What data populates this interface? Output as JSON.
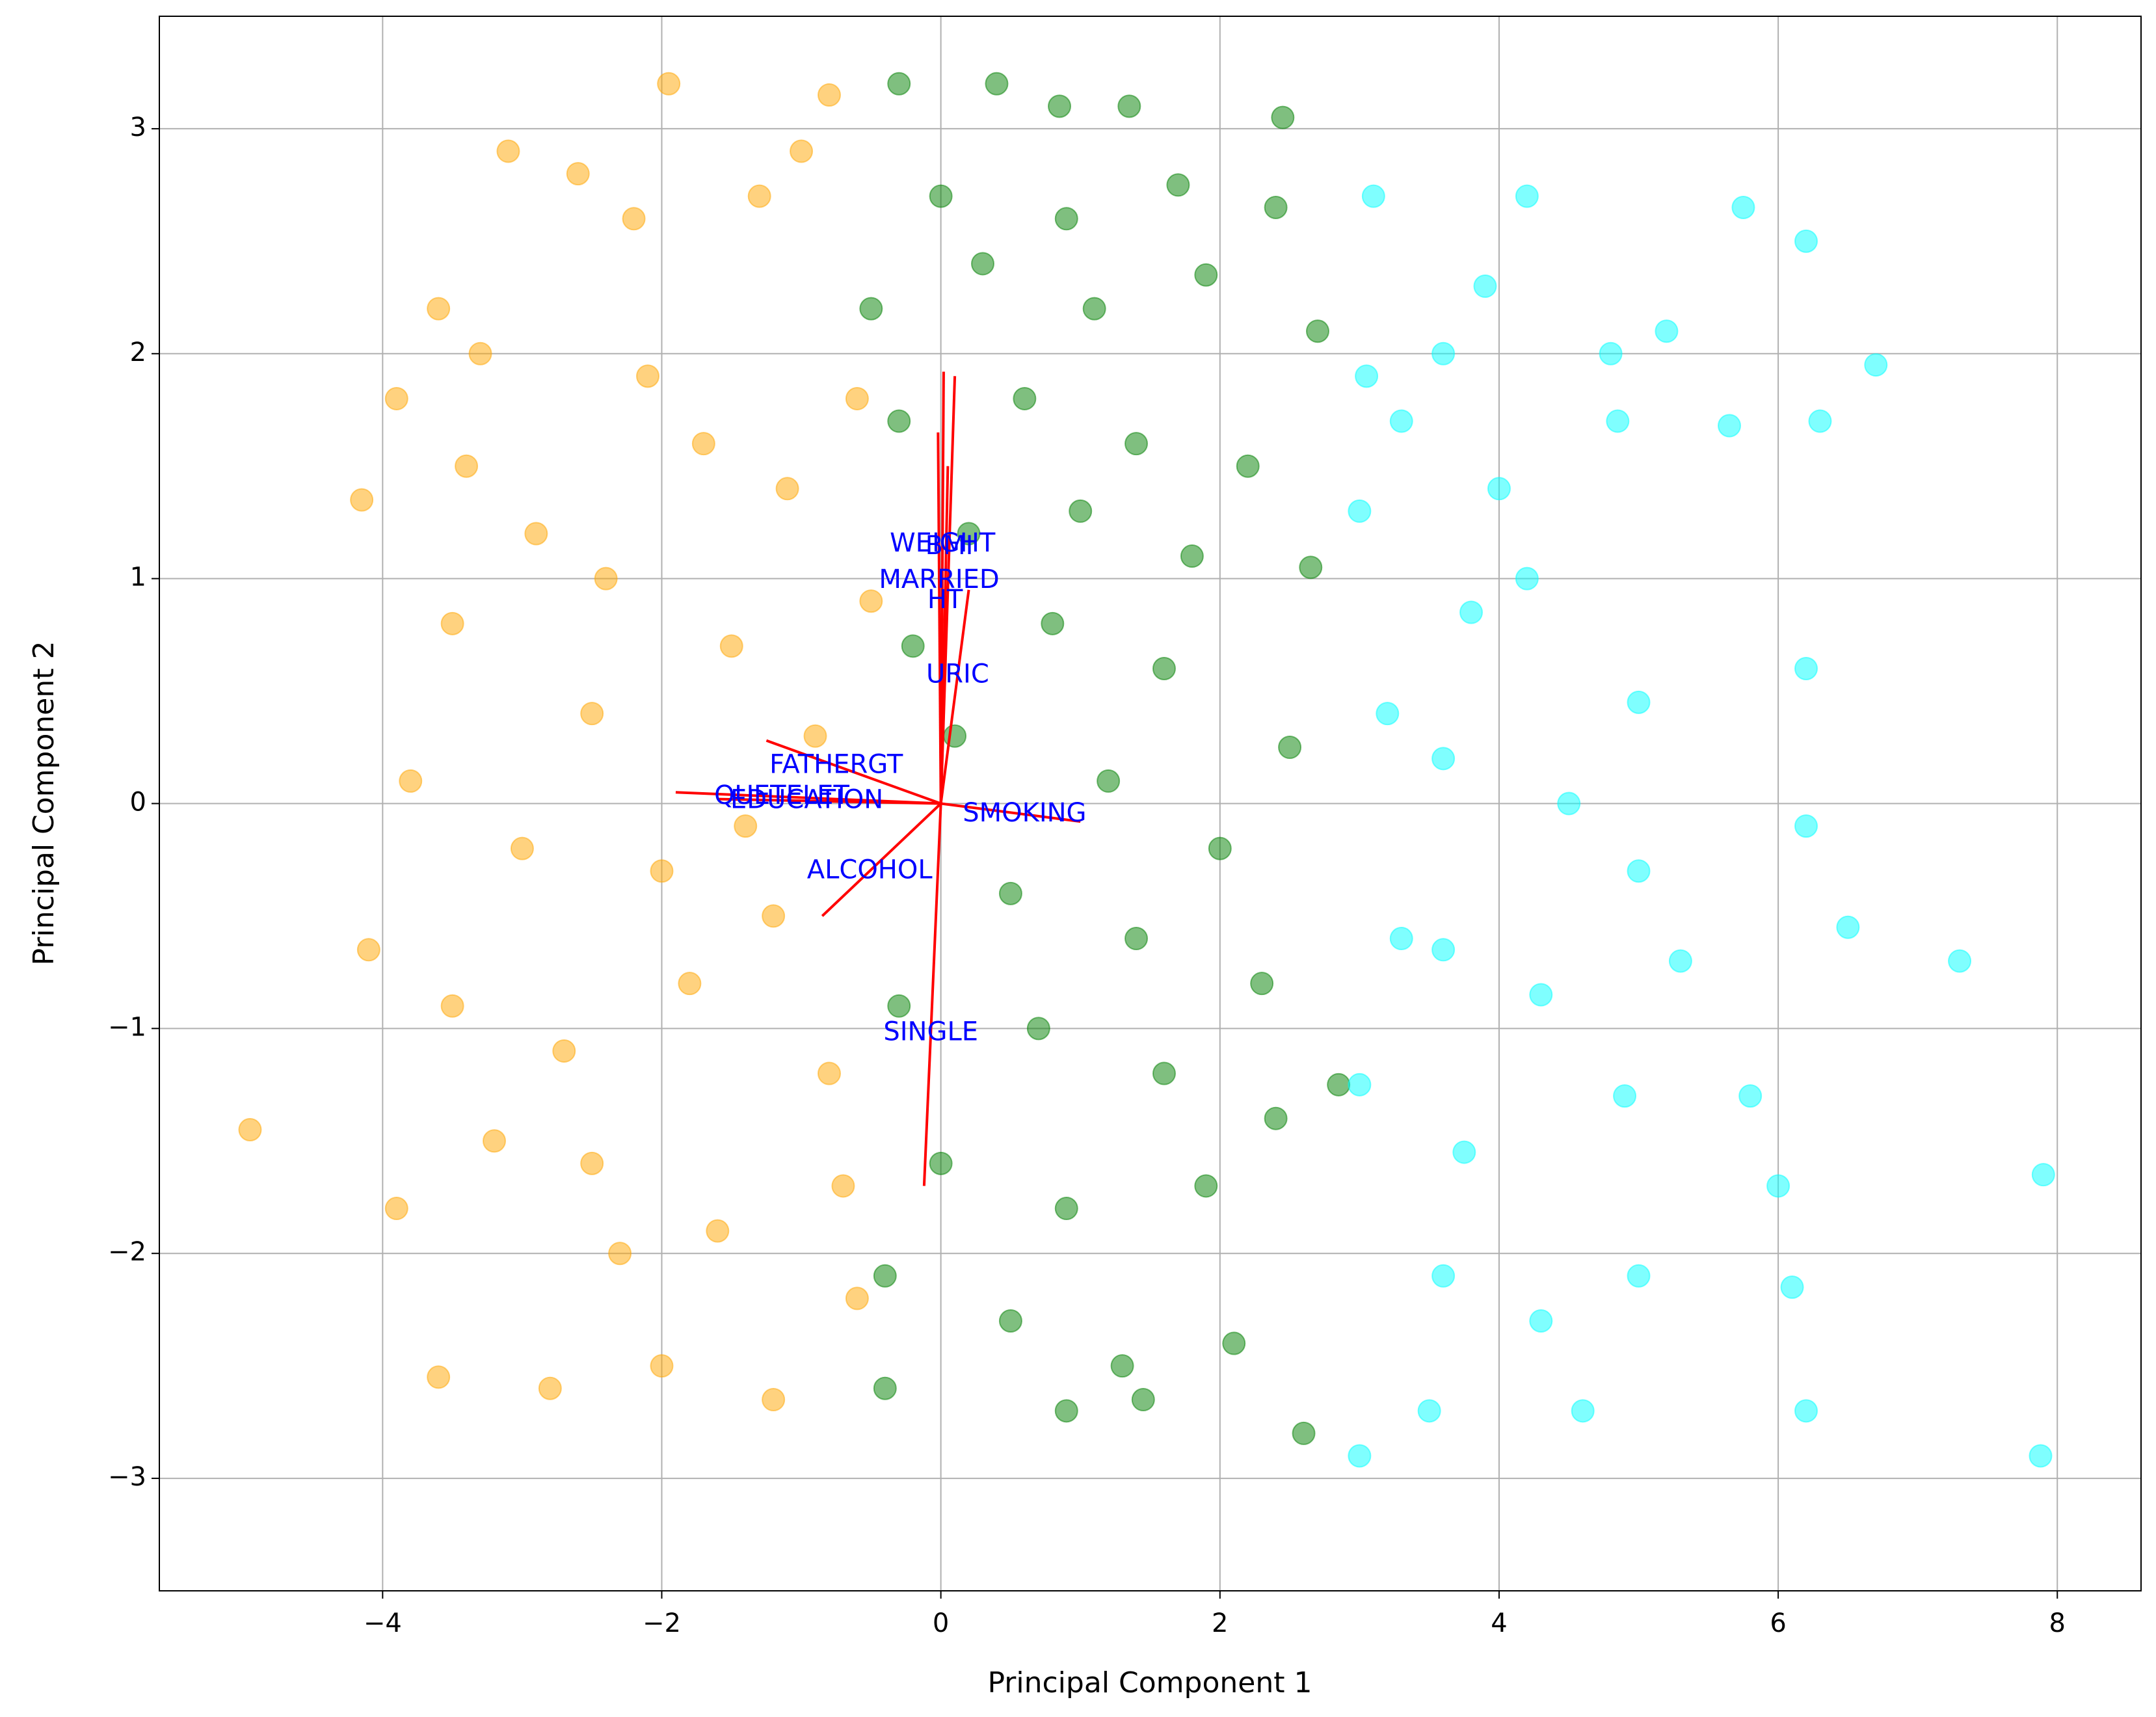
{
  "chart_data": {
    "type": "scatter",
    "xlabel": "Principal Component 1",
    "ylabel": "Principal Component 2",
    "xlim": [
      -5.6,
      8.6
    ],
    "ylim": [
      -3.5,
      3.5
    ],
    "xticks": [
      {
        "value": -4,
        "label": "−4"
      },
      {
        "value": -2,
        "label": "−2"
      },
      0,
      2,
      4,
      6,
      8
    ],
    "yticks": [
      {
        "value": -3,
        "label": "−3"
      },
      {
        "value": -2,
        "label": "−2"
      },
      {
        "value": -1,
        "label": "−1"
      },
      0,
      1,
      2,
      3
    ],
    "grid": true,
    "alpha": 0.5,
    "series": [
      {
        "color": "#ffa500",
        "x": [
          -3.6,
          -3.1,
          -2.6,
          -1.95,
          -1.0,
          -0.8,
          -2.2,
          -1.3,
          -3.9,
          -3.4,
          -2.9,
          -2.4,
          -1.7,
          -1.1,
          -0.6,
          -4.15,
          -3.5,
          -2.5,
          -1.5,
          -0.9,
          -3.8,
          -3.0,
          -2.0,
          -1.2,
          -4.1,
          -3.5,
          -2.7,
          -1.8,
          -0.8,
          -3.9,
          -3.2,
          -2.5,
          -1.6,
          -0.7,
          -3.6,
          -2.8,
          -2.0,
          -1.2,
          -0.6,
          -4.95,
          -3.3,
          -2.1,
          -1.4,
          -0.5,
          -2.3
        ],
        "y": [
          2.2,
          2.9,
          2.8,
          3.2,
          2.9,
          3.15,
          2.6,
          2.7,
          1.8,
          1.5,
          1.2,
          1.0,
          1.6,
          1.4,
          1.8,
          1.35,
          0.8,
          0.4,
          0.7,
          0.3,
          0.1,
          -0.2,
          -0.3,
          -0.5,
          -0.65,
          -0.9,
          -1.1,
          -0.8,
          -1.2,
          -1.8,
          -1.5,
          -1.6,
          -1.9,
          -1.7,
          -2.55,
          -2.6,
          -2.5,
          -2.65,
          -2.2,
          -1.45,
          2.0,
          1.9,
          -0.1,
          0.9,
          -2.0
        ]
      },
      {
        "color": "#008000",
        "x": [
          -0.3,
          0.4,
          0.85,
          1.35,
          2.45,
          0.0,
          0.9,
          1.7,
          2.4,
          -0.5,
          0.3,
          1.1,
          1.9,
          2.7,
          -0.3,
          0.6,
          1.4,
          2.2,
          0.2,
          1.0,
          1.8,
          2.65,
          -0.2,
          0.8,
          1.6,
          2.5,
          0.1,
          1.2,
          2.0,
          0.5,
          1.4,
          2.3,
          -0.3,
          0.7,
          1.6,
          2.4,
          0.0,
          0.9,
          1.9,
          2.85,
          -0.4,
          0.5,
          1.3,
          2.1,
          2.6,
          -0.4,
          0.9,
          1.45
        ],
        "y": [
          3.2,
          3.2,
          3.1,
          3.1,
          3.05,
          2.7,
          2.6,
          2.75,
          2.65,
          2.2,
          2.4,
          2.2,
          2.35,
          2.1,
          1.7,
          1.8,
          1.6,
          1.5,
          1.2,
          1.3,
          1.1,
          1.05,
          0.7,
          0.8,
          0.6,
          0.25,
          0.3,
          0.1,
          -0.2,
          -0.4,
          -0.6,
          -0.8,
          -0.9,
          -1.0,
          -1.2,
          -1.4,
          -1.6,
          -1.8,
          -1.7,
          -1.25,
          -2.1,
          -2.3,
          -2.5,
          -2.4,
          -2.8,
          -2.6,
          -2.7,
          -2.65
        ]
      },
      {
        "color": "#00ffff",
        "x": [
          3.1,
          3.9,
          4.2,
          5.75,
          6.2,
          3.05,
          3.6,
          4.8,
          5.2,
          6.7,
          3.3,
          4.0,
          4.85,
          5.65,
          6.3,
          3.0,
          3.8,
          4.2,
          5.0,
          6.2,
          3.2,
          3.6,
          4.5,
          5.0,
          6.2,
          3.3,
          3.6,
          4.3,
          5.3,
          6.5,
          3.0,
          3.75,
          4.9,
          5.8,
          7.3,
          7.9,
          3.6,
          4.3,
          5.0,
          6.1,
          3.0,
          3.5,
          4.6,
          6.2,
          7.88,
          6.0
        ],
        "y": [
          2.7,
          2.3,
          2.7,
          2.65,
          2.5,
          1.9,
          2.0,
          2.0,
          2.1,
          1.95,
          1.7,
          1.4,
          1.7,
          1.68,
          1.7,
          1.3,
          0.85,
          1.0,
          0.45,
          0.6,
          0.4,
          0.2,
          0.0,
          -0.3,
          -0.1,
          -0.6,
          -0.65,
          -0.85,
          -0.7,
          -0.55,
          -1.25,
          -1.55,
          -1.3,
          -1.3,
          -0.7,
          -1.65,
          -2.1,
          -2.3,
          -2.1,
          -2.15,
          -2.9,
          -2.7,
          -2.7,
          -2.7,
          -2.9,
          -1.7
        ]
      }
    ],
    "loadings_color": "#ff0000",
    "loadings_label_color": "#0000ff",
    "loadings": [
      {
        "label": "WEIGHT",
        "x": 0.02,
        "y": 1.92
      },
      {
        "label": "BMI",
        "x": 0.1,
        "y": 1.9
      },
      {
        "label": "HT",
        "x": 0.05,
        "y": 1.5
      },
      {
        "label": "MARRIED",
        "x": -0.02,
        "y": 1.65
      },
      {
        "label": "URIC",
        "x": 0.2,
        "y": 0.95
      },
      {
        "label": "FATHERGT",
        "x": -1.25,
        "y": 0.28
      },
      {
        "label": "SINGLE",
        "x": -0.12,
        "y": -1.7
      },
      {
        "label": "ALCOHOL",
        "x": -0.85,
        "y": -0.5
      },
      {
        "label": "SMOKING",
        "x": 1.0,
        "y": -0.08
      },
      {
        "label": "QUETELET",
        "x": -1.9,
        "y": 0.05
      },
      {
        "label": "EDUCATION",
        "x": -1.6,
        "y": 0.02
      }
    ]
  }
}
